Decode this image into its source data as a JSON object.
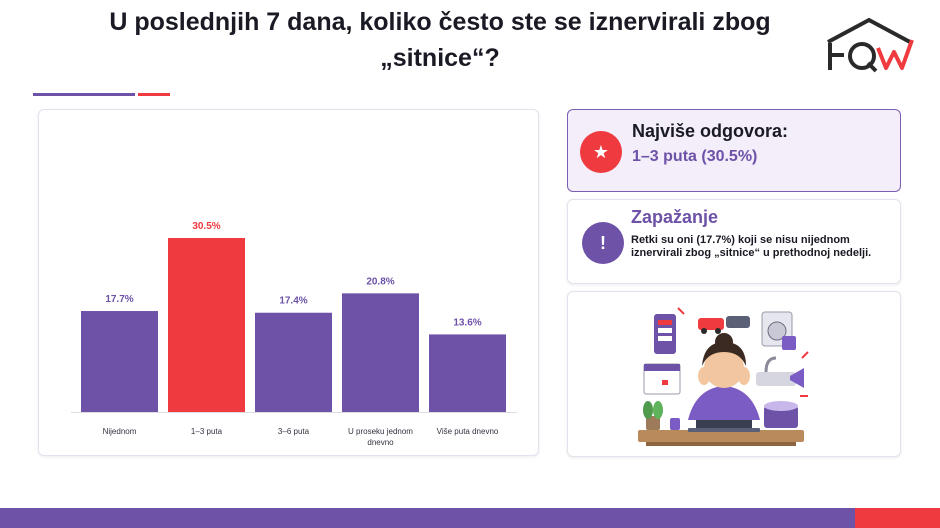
{
  "header": {
    "title_line1": "U poslednjih 7 dana, koliko često ste se iznervirali zbog",
    "title_line2": "„sitnice“?"
  },
  "colors": {
    "primary": "#6d52a8",
    "accent": "#ef3a3f",
    "text": "#1a1a24"
  },
  "chart_data": {
    "type": "bar",
    "categories": [
      [
        "Nijednom"
      ],
      [
        "1–3 puta"
      ],
      [
        "3–6 puta"
      ],
      [
        "U proseku jednom",
        "dnevno"
      ],
      [
        "Više puta dnevno"
      ]
    ],
    "values": [
      17.7,
      30.5,
      17.4,
      20.8,
      13.6
    ],
    "value_labels": [
      "17.7%",
      "30.5%",
      "17.4%",
      "20.8%",
      "13.6%"
    ],
    "highlight_index": 1,
    "bar_color": "#6d52a8",
    "highlight_color": "#ef3a3f",
    "ylim": [
      0,
      30.5
    ],
    "grid": false,
    "legend": "none"
  },
  "top_answer": {
    "icon": "star-icon",
    "heading": "Najviše odgovora:",
    "value": "1–3 puta (30.5%)"
  },
  "observation": {
    "icon": "exclamation-icon",
    "heading": "Zapažanje",
    "text": "Retki su oni (17.7%) koji se nisu nijednom iznervirali zbog „sitnice“ u prethodnoj nedelji."
  },
  "illustration": {
    "icon": "stressed-woman-illustration"
  }
}
